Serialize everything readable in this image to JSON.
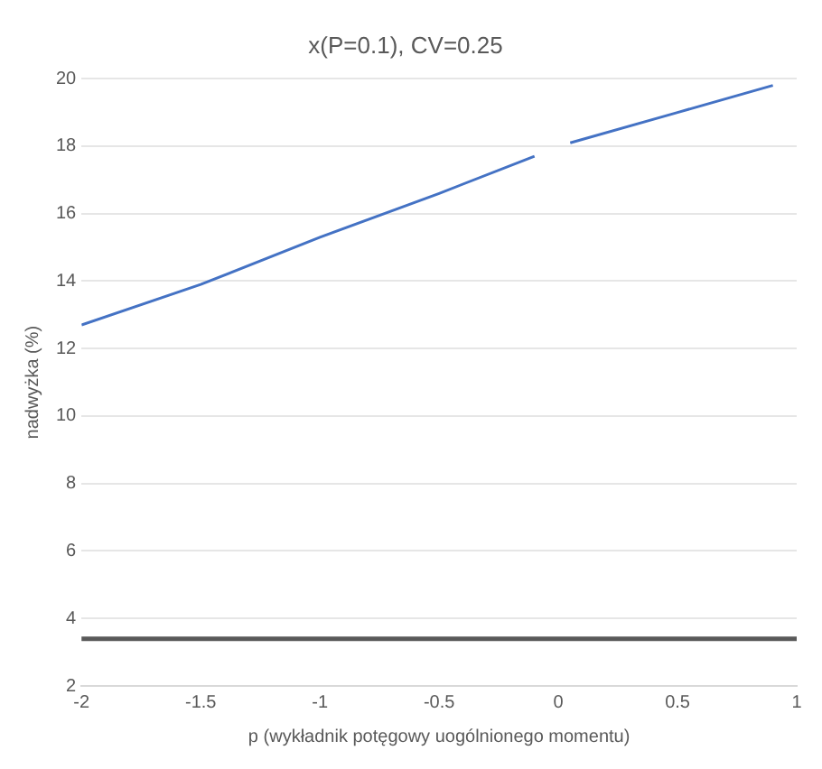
{
  "chart_data": {
    "type": "line",
    "title": "x(P=0.1), CV=0.25",
    "xlabel": "p (wykładnik potęgowy uogólnionego momentu)",
    "ylabel": "nadwyżka (%)",
    "series": [
      {
        "color": "#4472c4",
        "x": [
          -2,
          -1.5,
          -1,
          -0.5,
          -0.1,
          0,
          0.05,
          0.5,
          0.9
        ],
        "values": [
          12.7,
          13.9,
          15.3,
          16.6,
          17.7,
          null,
          18.1,
          19.0,
          19.8
        ]
      }
    ],
    "ref_lines": [
      {
        "axis": "y",
        "value": 3.4,
        "color": "#595959"
      }
    ],
    "xlim": [
      -2,
      1
    ],
    "xticks": [
      -2,
      -1.5,
      -1,
      -0.5,
      0,
      0.5,
      1
    ],
    "ylim": [
      2,
      20
    ],
    "yticks": [
      2,
      4,
      6,
      8,
      10,
      12,
      14,
      16,
      18,
      20
    ],
    "grid": "y",
    "legend": false,
    "marker": "none",
    "line_style": "solid"
  }
}
